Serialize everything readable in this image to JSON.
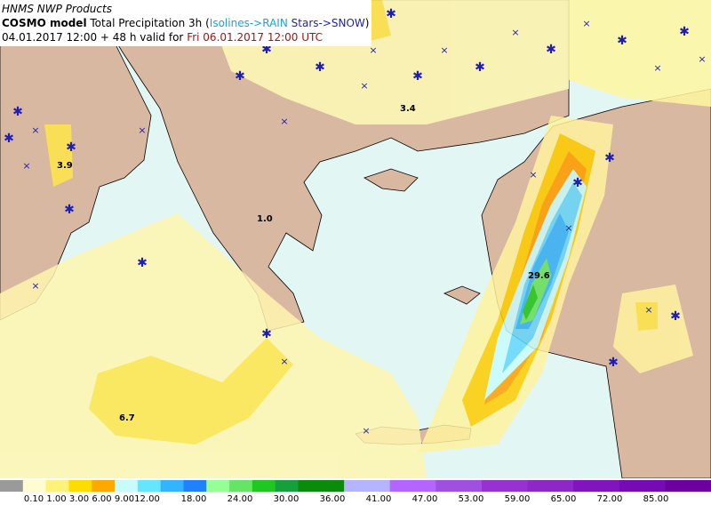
{
  "header": {
    "line1": "HNMS NWP Products",
    "model": "COSMO model",
    "product": "Total Precipitation 3h (",
    "rain": "Isolines->RAIN",
    "snow": "Stars->SNOW",
    "close": ")",
    "run": "04.01.2017 12:00 + 48 h valid for",
    "valid": "Fri 06.01.2017 12:00 UTC"
  },
  "map": {
    "labels": [
      "3.4",
      "3.9",
      "1.0",
      "29.6",
      "6.7"
    ]
  },
  "colorbar": {
    "labels": [
      "0.10",
      "1.00",
      "3.00",
      "6.00",
      "9.00",
      "12.00",
      "18.00",
      "24.00",
      "30.00",
      "36.00",
      "41.00",
      "47.00",
      "53.00",
      "59.00",
      "65.00",
      "72.00",
      "85.00"
    ],
    "colors": [
      "#9a9a9a",
      "#fffcd0",
      "#fff27a",
      "#ffdc00",
      "#ffa800",
      "#c8fcfc",
      "#64e6ff",
      "#32b4ff",
      "#1e82ff",
      "#96ff96",
      "#64e664",
      "#1ec81e",
      "#14a03c",
      "#0a8c0a",
      "#0a8c0a",
      "#b4b4ff",
      "#b4b4ff",
      "#b464ff",
      "#b464ff",
      "#a050e0",
      "#a050e0",
      "#9632d2",
      "#9632d2",
      "#8c28c8",
      "#8c28c8",
      "#8214be",
      "#8214be",
      "#780ab4",
      "#780ab4",
      "#6e00a0",
      "#6e00a0"
    ]
  }
}
